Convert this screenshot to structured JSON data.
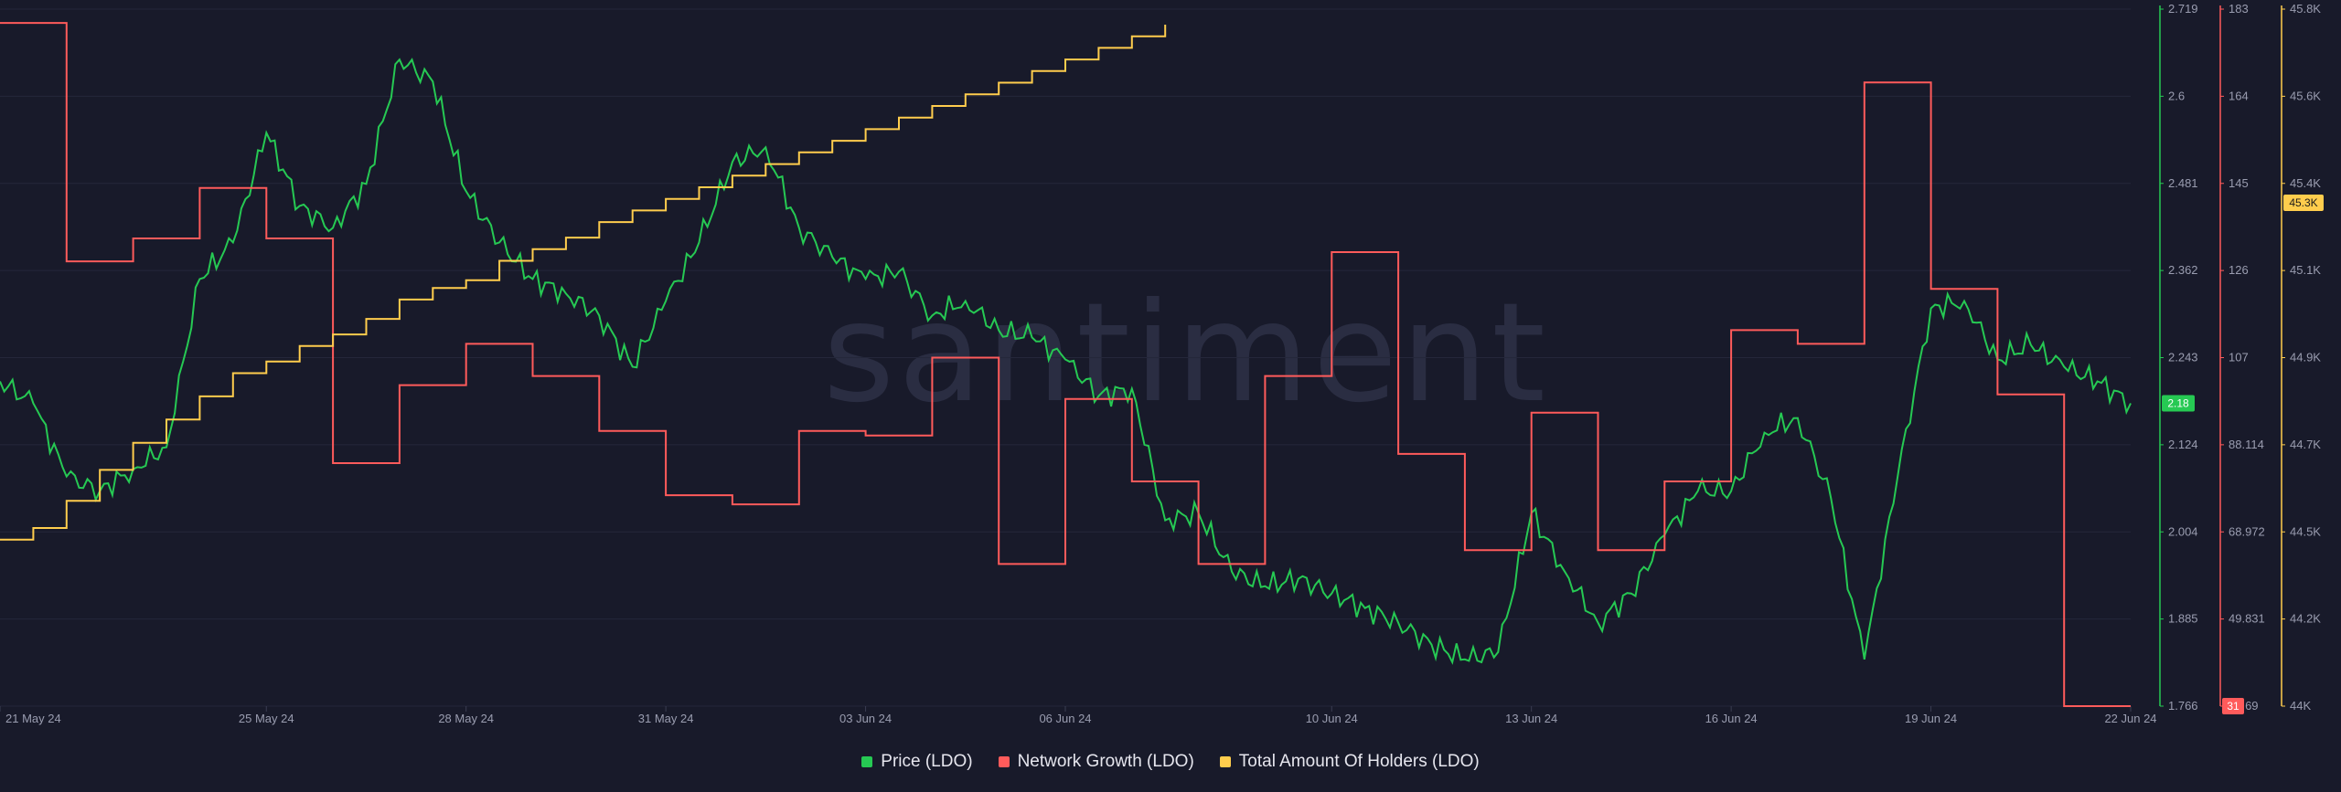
{
  "watermark": "santiment",
  "chart_data": {
    "type": "line",
    "x_range": [
      "2024-05-21",
      "2024-06-22"
    ],
    "x_ticks": [
      {
        "date": "2024-05-21",
        "label": "21 May 24"
      },
      {
        "date": "2024-05-25",
        "label": "25 May 24"
      },
      {
        "date": "2024-05-28",
        "label": "28 May 24"
      },
      {
        "date": "2024-05-31",
        "label": "31 May 24"
      },
      {
        "date": "2024-06-03",
        "label": "03 Jun 24"
      },
      {
        "date": "2024-06-06",
        "label": "06 Jun 24"
      },
      {
        "date": "2024-06-10",
        "label": "10 Jun 24"
      },
      {
        "date": "2024-06-13",
        "label": "13 Jun 24"
      },
      {
        "date": "2024-06-16",
        "label": "16 Jun 24"
      },
      {
        "date": "2024-06-19",
        "label": "19 Jun 24"
      },
      {
        "date": "2024-06-22",
        "label": "22 Jun 24"
      }
    ],
    "grid": true,
    "legend_position": "bottom-center",
    "axes": [
      {
        "id": "price",
        "color": "#26c953",
        "min": 1.766,
        "max": 2.719,
        "ticks": [
          "2.719",
          "2.6",
          "2.481",
          "2.362",
          "2.243",
          "2.124",
          "2.004",
          "1.885",
          "1.766"
        ],
        "current": "2.18"
      },
      {
        "id": "growth",
        "color": "#ff5b5b",
        "min": 31,
        "max": 183,
        "ticks": [
          "183",
          "164",
          "145",
          "126",
          "107",
          "88.114",
          "68.972",
          "49.831",
          "30.69"
        ],
        "current": "31"
      },
      {
        "id": "holders",
        "color": "#ffcd4d",
        "min": 44000,
        "max": 45800,
        "ticks": [
          "45.8K",
          "45.6K",
          "45.4K",
          "45.1K",
          "44.9K",
          "44.7K",
          "44.5K",
          "44.2K",
          "44K"
        ],
        "current": "45.3K"
      }
    ],
    "series": [
      {
        "name": "Price (LDO)",
        "axis": "price",
        "color": "#26c953",
        "points": [
          [
            "2024-05-21",
            2.21
          ],
          [
            "2024-05-21T12",
            2.18
          ],
          [
            "2024-05-22",
            2.08
          ],
          [
            "2024-05-22T12",
            2.06
          ],
          [
            "2024-05-23",
            2.09
          ],
          [
            "2024-05-23T12",
            2.12
          ],
          [
            "2024-05-24",
            2.35
          ],
          [
            "2024-05-24T12",
            2.4
          ],
          [
            "2024-05-25",
            2.55
          ],
          [
            "2024-05-25T12",
            2.45
          ],
          [
            "2024-05-26",
            2.42
          ],
          [
            "2024-05-26T12",
            2.48
          ],
          [
            "2024-05-27",
            2.65
          ],
          [
            "2024-05-27T12",
            2.62
          ],
          [
            "2024-05-28",
            2.47
          ],
          [
            "2024-05-28T12",
            2.4
          ],
          [
            "2024-05-29",
            2.35
          ],
          [
            "2024-05-29T12",
            2.33
          ],
          [
            "2024-05-30",
            2.3
          ],
          [
            "2024-05-30T12",
            2.23
          ],
          [
            "2024-05-31",
            2.32
          ],
          [
            "2024-05-31T12",
            2.4
          ],
          [
            "2024-06-01",
            2.51
          ],
          [
            "2024-06-01T12",
            2.53
          ],
          [
            "2024-06-02",
            2.42
          ],
          [
            "2024-06-02T12",
            2.38
          ],
          [
            "2024-06-03",
            2.35
          ],
          [
            "2024-06-03T12",
            2.36
          ],
          [
            "2024-06-04",
            2.3
          ],
          [
            "2024-06-04T12",
            2.32
          ],
          [
            "2024-06-05",
            2.28
          ],
          [
            "2024-06-05T12",
            2.27
          ],
          [
            "2024-06-06",
            2.24
          ],
          [
            "2024-06-06T12",
            2.19
          ],
          [
            "2024-06-07",
            2.2
          ],
          [
            "2024-06-07T12",
            2.02
          ],
          [
            "2024-06-08",
            2.03
          ],
          [
            "2024-06-08T12",
            1.95
          ],
          [
            "2024-06-09",
            1.93
          ],
          [
            "2024-06-09T12",
            1.94
          ],
          [
            "2024-06-10",
            1.92
          ],
          [
            "2024-06-10T12",
            1.9
          ],
          [
            "2024-06-11",
            1.88
          ],
          [
            "2024-06-11T12",
            1.85
          ],
          [
            "2024-06-12",
            1.83
          ],
          [
            "2024-06-12T12",
            1.84
          ],
          [
            "2024-06-13",
            2.03
          ],
          [
            "2024-06-13T12",
            1.95
          ],
          [
            "2024-06-14",
            1.88
          ],
          [
            "2024-06-14T12",
            1.92
          ],
          [
            "2024-06-15",
            2.0
          ],
          [
            "2024-06-15T12",
            2.06
          ],
          [
            "2024-06-16",
            2.06
          ],
          [
            "2024-06-16T12",
            2.14
          ],
          [
            "2024-06-17",
            2.16
          ],
          [
            "2024-06-17T12",
            2.05
          ],
          [
            "2024-06-18",
            1.83
          ],
          [
            "2024-06-18T12",
            2.08
          ],
          [
            "2024-06-19",
            2.31
          ],
          [
            "2024-06-19T12",
            2.32
          ],
          [
            "2024-06-20",
            2.24
          ],
          [
            "2024-06-20T12",
            2.26
          ],
          [
            "2024-06-21",
            2.23
          ],
          [
            "2024-06-21T12",
            2.21
          ],
          [
            "2024-06-22",
            2.18
          ]
        ]
      },
      {
        "name": "Network Growth (LDO)",
        "axis": "growth",
        "color": "#ff5b5b",
        "points": [
          [
            "2024-05-21",
            180
          ],
          [
            "2024-05-22",
            180
          ],
          [
            "2024-05-22",
            128
          ],
          [
            "2024-05-23",
            128
          ],
          [
            "2024-05-23",
            133
          ],
          [
            "2024-05-24",
            133
          ],
          [
            "2024-05-24",
            144
          ],
          [
            "2024-05-25",
            144
          ],
          [
            "2024-05-25",
            133
          ],
          [
            "2024-05-26",
            133
          ],
          [
            "2024-05-26",
            84
          ],
          [
            "2024-05-27",
            84
          ],
          [
            "2024-05-27",
            101
          ],
          [
            "2024-05-28",
            101
          ],
          [
            "2024-05-28",
            110
          ],
          [
            "2024-05-29",
            110
          ],
          [
            "2024-05-29",
            103
          ],
          [
            "2024-05-30",
            103
          ],
          [
            "2024-05-30",
            91
          ],
          [
            "2024-05-31",
            91
          ],
          [
            "2024-05-31",
            77
          ],
          [
            "2024-06-01",
            77
          ],
          [
            "2024-06-01",
            75
          ],
          [
            "2024-06-02",
            75
          ],
          [
            "2024-06-02",
            91
          ],
          [
            "2024-06-03",
            91
          ],
          [
            "2024-06-03",
            90
          ],
          [
            "2024-06-04",
            90
          ],
          [
            "2024-06-04",
            107
          ],
          [
            "2024-06-05",
            107
          ],
          [
            "2024-06-05",
            62
          ],
          [
            "2024-06-06",
            62
          ],
          [
            "2024-06-06",
            98
          ],
          [
            "2024-06-07",
            98
          ],
          [
            "2024-06-07",
            80
          ],
          [
            "2024-06-08",
            80
          ],
          [
            "2024-06-08",
            62
          ],
          [
            "2024-06-09",
            62
          ],
          [
            "2024-06-09",
            103
          ],
          [
            "2024-06-10",
            103
          ],
          [
            "2024-06-10",
            130
          ],
          [
            "2024-06-11",
            130
          ],
          [
            "2024-06-11",
            86
          ],
          [
            "2024-06-12",
            86
          ],
          [
            "2024-06-12",
            65
          ],
          [
            "2024-06-13",
            65
          ],
          [
            "2024-06-13",
            95
          ],
          [
            "2024-06-14",
            95
          ],
          [
            "2024-06-14",
            65
          ],
          [
            "2024-06-15",
            65
          ],
          [
            "2024-06-15",
            80
          ],
          [
            "2024-06-16",
            80
          ],
          [
            "2024-06-16",
            113
          ],
          [
            "2024-06-17",
            113
          ],
          [
            "2024-06-17",
            110
          ],
          [
            "2024-06-18",
            110
          ],
          [
            "2024-06-18",
            167
          ],
          [
            "2024-06-19",
            167
          ],
          [
            "2024-06-19",
            122
          ],
          [
            "2024-06-20",
            122
          ],
          [
            "2024-06-20",
            99
          ],
          [
            "2024-06-21",
            99
          ],
          [
            "2024-06-21",
            31
          ],
          [
            "2024-06-22",
            31
          ]
        ]
      },
      {
        "name": "Total Amount Of Holders (LDO)",
        "axis": "holders",
        "color": "#ffcd4d",
        "points": [
          [
            "2024-05-21",
            44430
          ],
          [
            "2024-05-21T12",
            44460
          ],
          [
            "2024-05-22",
            44530
          ],
          [
            "2024-05-22T12",
            44610
          ],
          [
            "2024-05-23",
            44680
          ],
          [
            "2024-05-23T12",
            44740
          ],
          [
            "2024-05-24",
            44800
          ],
          [
            "2024-05-24T12",
            44860
          ],
          [
            "2024-05-25",
            44890
          ],
          [
            "2024-05-25T12",
            44930
          ],
          [
            "2024-05-26",
            44960
          ],
          [
            "2024-05-26T12",
            45000
          ],
          [
            "2024-05-27",
            45050
          ],
          [
            "2024-05-27T12",
            45080
          ],
          [
            "2024-05-28",
            45100
          ],
          [
            "2024-05-28T12",
            45150
          ],
          [
            "2024-05-29",
            45180
          ],
          [
            "2024-05-29T12",
            45210
          ],
          [
            "2024-05-30",
            45250
          ],
          [
            "2024-05-30T12",
            45280
          ],
          [
            "2024-05-31",
            45310
          ],
          [
            "2024-05-31T12",
            45340
          ],
          [
            "2024-06-01",
            45370
          ],
          [
            "2024-06-01T12",
            45400
          ],
          [
            "2024-06-02",
            45430
          ],
          [
            "2024-06-02T12",
            45460
          ],
          [
            "2024-06-03",
            45490
          ],
          [
            "2024-06-03T12",
            45520
          ],
          [
            "2024-06-04",
            45550
          ],
          [
            "2024-06-04T12",
            45580
          ],
          [
            "2024-06-05",
            45610
          ],
          [
            "2024-06-05T12",
            45640
          ],
          [
            "2024-06-06",
            45670
          ],
          [
            "2024-06-06T12",
            45700
          ],
          [
            "2024-06-07",
            45730
          ],
          [
            "2024-06-07T12",
            45760
          ]
        ]
      }
    ]
  },
  "legend": [
    {
      "label": "Price (LDO)",
      "color": "#26c953"
    },
    {
      "label": "Network Growth (LDO)",
      "color": "#ff5b5b"
    },
    {
      "label": "Total Amount Of Holders (LDO)",
      "color": "#ffcd4d"
    }
  ]
}
